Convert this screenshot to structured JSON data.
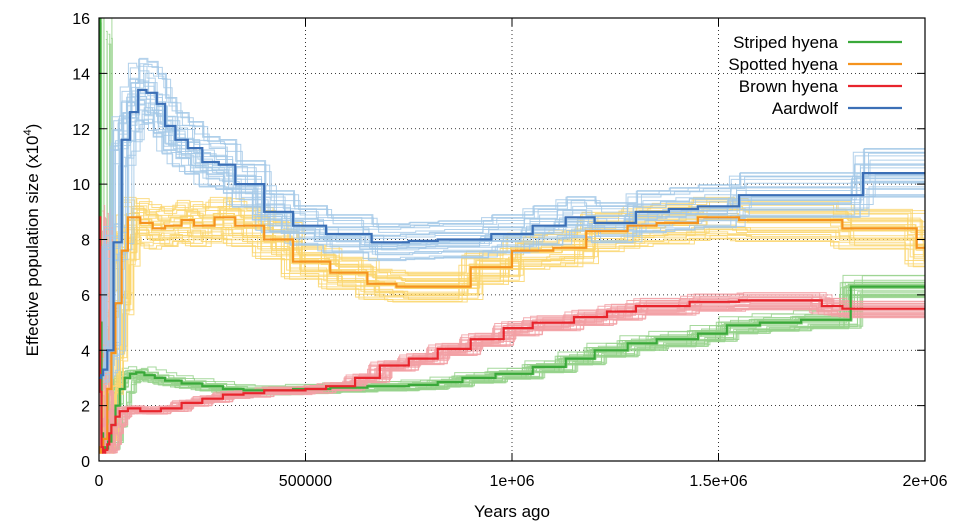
{
  "chart_data": {
    "type": "line",
    "step": true,
    "xlabel": "Years ago",
    "ylabel_main": "Effective population size (x10",
    "ylabel_sup": "4",
    "ylabel_close": ")",
    "xlim": [
      0,
      2000000
    ],
    "ylim": [
      0,
      16
    ],
    "xticks": [
      0,
      500000,
      1000000,
      1500000,
      2000000
    ],
    "xtick_labels": [
      "0",
      "500000",
      "1e+06",
      "1.5e+06",
      "2e+06"
    ],
    "yticks": [
      0,
      2,
      4,
      6,
      8,
      10,
      12,
      14,
      16
    ],
    "ytick_labels": [
      "0",
      "2",
      "4",
      "6",
      "8",
      "10",
      "12",
      "14",
      "16"
    ],
    "grid": true,
    "legend_position": "top-right",
    "series": [
      {
        "name": "Striped hyena",
        "color": "#3aa93a",
        "band_color": "#96d28c",
        "band_spread": 0.35,
        "x": [
          0,
          3000,
          6000,
          10000,
          15000,
          22000,
          30000,
          40000,
          50000,
          62000,
          75000,
          90000,
          110000,
          135000,
          160000,
          200000,
          250000,
          300000,
          350000,
          400000,
          470000,
          560000,
          650000,
          750000,
          820000,
          880000,
          960000,
          1050000,
          1130000,
          1200000,
          1280000,
          1350000,
          1450000,
          1520000,
          1600000,
          1700000,
          1820000,
          1900000,
          2000000
        ],
        "y": [
          16,
          5,
          1.0,
          0.5,
          0.45,
          0.7,
          1.3,
          2.0,
          2.6,
          3.0,
          3.15,
          3.2,
          3.1,
          3.0,
          2.9,
          2.8,
          2.7,
          2.6,
          2.55,
          2.55,
          2.6,
          2.65,
          2.7,
          2.75,
          2.85,
          3.0,
          3.15,
          3.4,
          3.7,
          4.0,
          4.25,
          4.4,
          4.6,
          4.9,
          5.0,
          5.1,
          6.3,
          6.3,
          6.3
        ]
      },
      {
        "name": "Spotted hyena",
        "color": "#f5931e",
        "band_color": "#fad66e",
        "band_spread": 0.45,
        "x": [
          0,
          3000,
          6000,
          10000,
          20000,
          30000,
          40000,
          55000,
          70000,
          100000,
          130000,
          160000,
          200000,
          230000,
          280000,
          330000,
          400000,
          470000,
          560000,
          650000,
          720000,
          820000,
          900000,
          1000000,
          1100000,
          1180000,
          1280000,
          1350000,
          1450000,
          1550000,
          1700000,
          1800000,
          1900000,
          1980000,
          2000000
        ],
        "y": [
          0.5,
          0.3,
          0.4,
          0.8,
          2.6,
          3.9,
          5.7,
          7.6,
          8.8,
          8.6,
          8.4,
          8.5,
          8.7,
          8.5,
          8.8,
          8.5,
          8.0,
          7.2,
          6.8,
          6.4,
          6.3,
          6.3,
          7.0,
          7.6,
          7.7,
          8.3,
          8.5,
          8.6,
          8.8,
          8.7,
          8.7,
          8.4,
          8.4,
          7.7,
          7.7
        ]
      },
      {
        "name": "Brown hyena",
        "color": "#e8242c",
        "band_color": "#f2a0a5",
        "band_spread": 0.3,
        "x": [
          0,
          3000,
          6000,
          10000,
          15000,
          20000,
          25000,
          30000,
          40000,
          50000,
          70000,
          100000,
          150000,
          200000,
          250000,
          300000,
          350000,
          400000,
          500000,
          550000,
          620000,
          680000,
          750000,
          820000,
          900000,
          980000,
          1050000,
          1150000,
          1230000,
          1300000,
          1430000,
          1550000,
          1700000,
          1750000,
          1800000,
          2000000
        ],
        "y": [
          8.8,
          2.5,
          0.5,
          0.3,
          0.4,
          0.6,
          1.0,
          1.3,
          1.6,
          1.8,
          1.9,
          1.8,
          1.9,
          2.1,
          2.25,
          2.4,
          2.45,
          2.55,
          2.6,
          2.7,
          3.0,
          3.45,
          3.7,
          4.05,
          4.4,
          4.8,
          5.0,
          5.2,
          5.4,
          5.6,
          5.75,
          5.8,
          5.8,
          5.6,
          5.5,
          5.5
        ]
      },
      {
        "name": "Aardwolf",
        "color": "#3b6fb6",
        "band_color": "#a5c9e8",
        "band_spread": 0.45,
        "x": [
          0,
          5000,
          10000,
          20000,
          35000,
          55000,
          75000,
          95000,
          115000,
          140000,
          160000,
          185000,
          215000,
          250000,
          290000,
          330000,
          400000,
          470000,
          550000,
          660000,
          750000,
          820000,
          950000,
          1050000,
          1130000,
          1200000,
          1300000,
          1380000,
          1450000,
          1550000,
          1700000,
          1800000,
          1850000,
          2000000
        ],
        "y": [
          3.0,
          3.1,
          3.3,
          4.0,
          7.9,
          11.6,
          12.6,
          13.4,
          13.3,
          12.9,
          12.1,
          11.6,
          11.3,
          10.8,
          10.7,
          10.0,
          9.0,
          8.5,
          8.2,
          7.9,
          7.95,
          8.0,
          8.2,
          8.5,
          8.8,
          8.6,
          9.0,
          9.1,
          9.2,
          9.6,
          9.6,
          9.6,
          10.4,
          10.4
        ]
      }
    ]
  }
}
